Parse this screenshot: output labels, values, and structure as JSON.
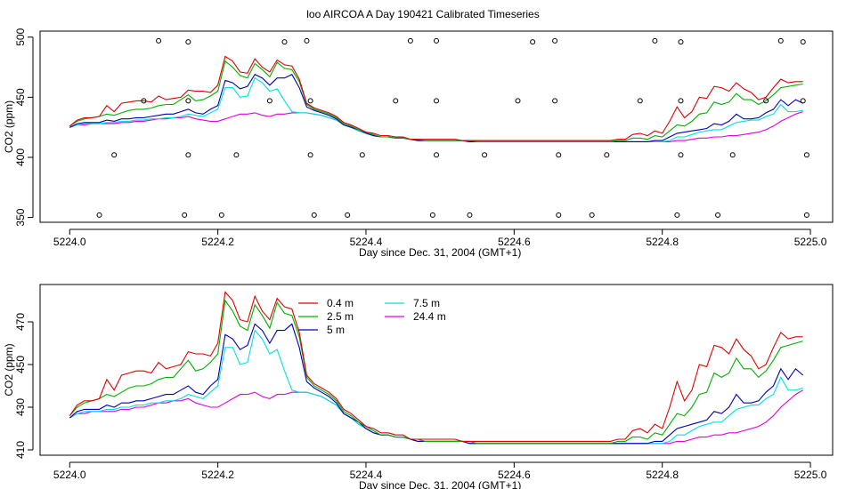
{
  "title": "loo AIRCOA A  Day 190421  Calibrated Timeseries",
  "colors": {
    "0.4 m": "#e00000",
    "2.5 m": "#00b000",
    "5 m": "#0000b0",
    "7.5 m": "#00e0e0",
    "24.4 m": "#e000e0",
    "axis": "#000000"
  },
  "chart_data": [
    {
      "type": "line",
      "xlabel": "Day since Dec. 31, 2004 (GMT+1)",
      "ylabel": "CO2 (ppm)",
      "xlim": [
        5224.0,
        5225.0
      ],
      "ylim": [
        350,
        500
      ],
      "xticks": [
        "5224.0",
        "5224.2",
        "5224.4",
        "5224.6",
        "5224.8",
        "5225.0"
      ],
      "yticks": [
        "350",
        "400",
        "450",
        "500"
      ],
      "x": [
        5224.0,
        5224.01,
        5224.02,
        5224.03,
        5224.04,
        5224.05,
        5224.06,
        5224.07,
        5224.08,
        5224.09,
        5224.1,
        5224.11,
        5224.12,
        5224.13,
        5224.14,
        5224.15,
        5224.16,
        5224.17,
        5224.18,
        5224.19,
        5224.2,
        5224.21,
        5224.22,
        5224.23,
        5224.24,
        5224.25,
        5224.26,
        5224.27,
        5224.28,
        5224.29,
        5224.3,
        5224.31,
        5224.32,
        5224.33,
        5224.34,
        5224.35,
        5224.36,
        5224.37,
        5224.38,
        5224.39,
        5224.4,
        5224.41,
        5224.42,
        5224.43,
        5224.44,
        5224.45,
        5224.46,
        5224.47,
        5224.48,
        5224.49,
        5224.5,
        5224.51,
        5224.52,
        5224.53,
        5224.54,
        5224.55,
        5224.56,
        5224.57,
        5224.58,
        5224.59,
        5224.6,
        5224.61,
        5224.62,
        5224.63,
        5224.64,
        5224.65,
        5224.66,
        5224.67,
        5224.68,
        5224.69,
        5224.7,
        5224.71,
        5224.72,
        5224.73,
        5224.74,
        5224.75,
        5224.76,
        5224.77,
        5224.78,
        5224.79,
        5224.8,
        5224.81,
        5224.82,
        5224.83,
        5224.84,
        5224.85,
        5224.86,
        5224.87,
        5224.88,
        5224.89,
        5224.9,
        5224.91,
        5224.92,
        5224.93,
        5224.94,
        5224.95,
        5224.96,
        5224.97,
        5224.98,
        5224.99
      ],
      "series": [
        {
          "name": "0.4 m",
          "values": [
            426,
            431,
            433,
            433,
            434,
            443,
            438,
            445,
            446,
            447,
            447,
            446,
            451,
            448,
            449,
            450,
            456,
            455,
            455,
            454,
            460,
            484,
            480,
            471,
            470,
            482,
            475,
            471,
            481,
            477,
            476,
            465,
            445,
            441,
            439,
            437,
            434,
            429,
            427,
            424,
            421,
            420,
            418,
            418,
            417,
            417,
            415,
            415,
            415,
            415,
            415,
            415,
            415,
            414,
            414,
            414,
            414,
            414,
            414,
            414,
            414,
            414,
            414,
            414,
            414,
            414,
            414,
            414,
            414,
            414,
            414,
            414,
            414,
            414,
            415,
            415,
            419,
            420,
            418,
            422,
            420,
            430,
            442,
            433,
            438,
            450,
            449,
            459,
            458,
            455,
            462,
            457,
            454,
            448,
            450,
            458,
            465,
            462,
            463,
            463
          ]
        },
        {
          "name": "2.5 m",
          "values": [
            426,
            430,
            432,
            433,
            434,
            436,
            435,
            437,
            439,
            440,
            440,
            441,
            443,
            444,
            444,
            448,
            452,
            447,
            448,
            451,
            455,
            480,
            475,
            468,
            466,
            478,
            473,
            467,
            479,
            474,
            473,
            463,
            444,
            440,
            438,
            436,
            433,
            428,
            426,
            423,
            421,
            419,
            417,
            417,
            416,
            416,
            415,
            415,
            414,
            414,
            414,
            414,
            414,
            414,
            414,
            413,
            413,
            413,
            413,
            413,
            413,
            413,
            413,
            413,
            413,
            413,
            413,
            413,
            413,
            413,
            413,
            413,
            413,
            413,
            414,
            414,
            416,
            416,
            415,
            418,
            417,
            422,
            427,
            426,
            430,
            436,
            437,
            446,
            444,
            446,
            453,
            448,
            448,
            444,
            447,
            452,
            458,
            459,
            460,
            461
          ]
        },
        {
          "name": "5 m",
          "values": [
            425,
            428,
            429,
            429,
            429,
            431,
            430,
            432,
            432,
            433,
            433,
            434,
            435,
            436,
            436,
            438,
            440,
            437,
            436,
            440,
            443,
            464,
            462,
            457,
            459,
            469,
            466,
            460,
            466,
            466,
            469,
            458,
            442,
            439,
            437,
            435,
            432,
            427,
            425,
            423,
            420,
            418,
            417,
            417,
            416,
            416,
            415,
            414,
            414,
            414,
            414,
            414,
            414,
            414,
            413,
            413,
            413,
            413,
            413,
            413,
            413,
            413,
            413,
            413,
            413,
            413,
            413,
            413,
            413,
            413,
            413,
            413,
            413,
            413,
            413,
            413,
            413,
            413,
            413,
            414,
            414,
            417,
            420,
            421,
            422,
            423,
            424,
            428,
            427,
            430,
            436,
            432,
            432,
            433,
            437,
            440,
            448,
            443,
            448,
            445
          ]
        },
        {
          "name": "7.5 m",
          "values": [
            425,
            427,
            428,
            428,
            428,
            429,
            429,
            430,
            430,
            431,
            431,
            432,
            432,
            433,
            433,
            434,
            436,
            435,
            434,
            437,
            440,
            458,
            458,
            450,
            451,
            466,
            462,
            455,
            457,
            447,
            438,
            437,
            437,
            436,
            435,
            433,
            431,
            427,
            425,
            422,
            420,
            418,
            417,
            417,
            416,
            416,
            415,
            414,
            414,
            414,
            414,
            414,
            414,
            414,
            413,
            413,
            413,
            413,
            413,
            413,
            413,
            413,
            413,
            413,
            413,
            413,
            413,
            413,
            413,
            413,
            413,
            413,
            413,
            413,
            413,
            413,
            413,
            413,
            413,
            413,
            413,
            414,
            417,
            417,
            419,
            421,
            422,
            423,
            423,
            426,
            429,
            430,
            431,
            431,
            434,
            436,
            444,
            438,
            438,
            439
          ]
        },
        {
          "name": "24.4 m",
          "values": [
            425,
            427,
            427,
            428,
            428,
            428,
            428,
            429,
            429,
            430,
            430,
            431,
            432,
            432,
            433,
            433,
            434,
            432,
            431,
            430,
            430,
            432,
            434,
            436,
            436,
            437,
            435,
            434,
            436,
            436,
            437,
            437,
            437,
            436,
            435,
            433,
            431,
            427,
            425,
            422,
            420,
            418,
            417,
            417,
            416,
            416,
            415,
            414,
            414,
            414,
            414,
            414,
            414,
            414,
            413,
            413,
            413,
            413,
            413,
            413,
            413,
            413,
            413,
            413,
            413,
            413,
            413,
            413,
            413,
            413,
            413,
            413,
            413,
            413,
            413,
            413,
            413,
            413,
            413,
            413,
            413,
            413,
            414,
            414,
            415,
            416,
            416,
            417,
            417,
            418,
            418,
            419,
            420,
            421,
            423,
            426,
            430,
            433,
            436,
            438
          ]
        }
      ],
      "markers": {
        "shape": "open-circle",
        "points": [
          [
            5224.04,
            352
          ],
          [
            5224.06,
            402
          ],
          [
            5224.1,
            447
          ],
          [
            5224.12,
            497
          ],
          [
            5224.155,
            352
          ],
          [
            5224.16,
            402
          ],
          [
            5224.16,
            447
          ],
          [
            5224.16,
            496
          ],
          [
            5224.205,
            352
          ],
          [
            5224.225,
            402
          ],
          [
            5224.27,
            447
          ],
          [
            5224.29,
            496
          ],
          [
            5224.32,
            497
          ],
          [
            5224.325,
            402
          ],
          [
            5224.325,
            447
          ],
          [
            5224.33,
            352
          ],
          [
            5224.375,
            352
          ],
          [
            5224.395,
            402
          ],
          [
            5224.44,
            447
          ],
          [
            5224.46,
            497
          ],
          [
            5224.49,
            352
          ],
          [
            5224.495,
            402
          ],
          [
            5224.495,
            447
          ],
          [
            5224.495,
            497
          ],
          [
            5224.54,
            352
          ],
          [
            5224.56,
            402
          ],
          [
            5224.605,
            447
          ],
          [
            5224.625,
            496
          ],
          [
            5224.655,
            447
          ],
          [
            5224.655,
            497
          ],
          [
            5224.66,
            402
          ],
          [
            5224.66,
            352
          ],
          [
            5224.705,
            352
          ],
          [
            5224.725,
            402
          ],
          [
            5224.77,
            447
          ],
          [
            5224.79,
            497
          ],
          [
            5224.82,
            352
          ],
          [
            5224.825,
            402
          ],
          [
            5224.825,
            447
          ],
          [
            5224.825,
            496
          ],
          [
            5224.875,
            352
          ],
          [
            5224.895,
            402
          ],
          [
            5224.94,
            447
          ],
          [
            5224.96,
            497
          ],
          [
            5224.99,
            496
          ],
          [
            5224.99,
            447
          ],
          [
            5224.995,
            402
          ],
          [
            5224.995,
            352
          ]
        ]
      }
    },
    {
      "type": "line",
      "xlabel": "Day since Dec. 31, 2004 (GMT+1)",
      "ylabel": "CO2 (ppm)",
      "xlim": [
        5224.0,
        5225.0
      ],
      "ylim": [
        410,
        485
      ],
      "xticks": [
        "5224.0",
        "5224.2",
        "5224.4",
        "5224.6",
        "5224.8",
        "5225.0"
      ],
      "yticks": [
        "410",
        "430",
        "450",
        "470"
      ],
      "legend": {
        "placement": "top-center",
        "entries": [
          "0.4 m",
          "2.5 m",
          "5 m",
          "7.5 m",
          "24.4 m"
        ]
      },
      "series_from": "same as first chart"
    }
  ]
}
